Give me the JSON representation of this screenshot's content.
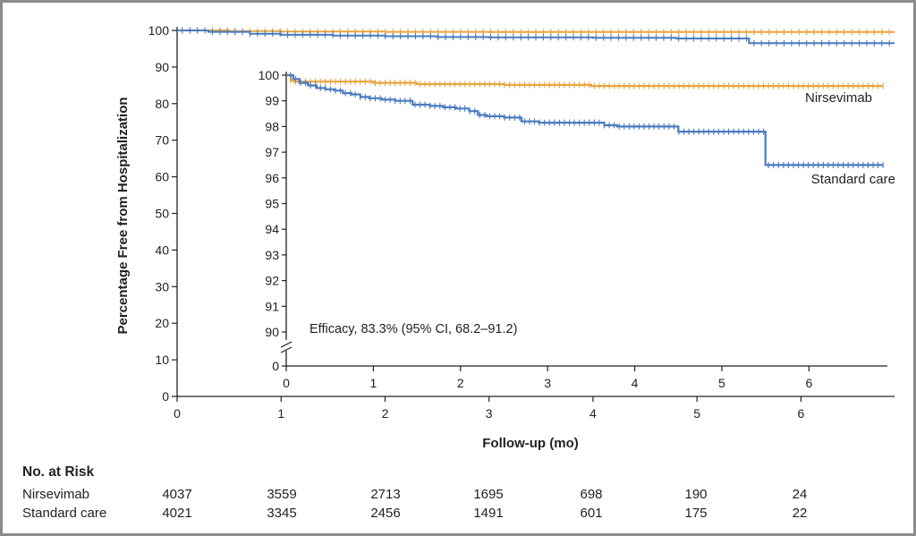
{
  "colors": {
    "nirsevimab": "#e8a640",
    "standard_care": "#4a7bbf",
    "axis": "#222222",
    "frame": "#8a8a8a"
  },
  "chart_data": [
    {
      "type": "line",
      "name": "main",
      "xlabel": "Follow-up (mo)",
      "ylabel": "Percentage Free from Hospitalization",
      "xlim": [
        0,
        6.9
      ],
      "ylim": [
        0,
        100
      ],
      "x_ticks": [
        "0",
        "1",
        "2",
        "3",
        "4",
        "5",
        "6"
      ],
      "y_ticks": [
        "0",
        "10",
        "20",
        "30",
        "40",
        "50",
        "60",
        "70",
        "80",
        "90",
        "100"
      ],
      "series": [
        {
          "key": "nirsevimab",
          "x": [
            0,
            0.5,
            1,
            2,
            3,
            4,
            5,
            6,
            6.9
          ],
          "y": [
            100,
            99.8,
            99.7,
            99.6,
            99.55,
            99.55,
            99.55,
            99.55,
            99.55
          ]
        },
        {
          "key": "standard_care",
          "x": [
            0,
            0.3,
            0.7,
            1,
            1.5,
            2,
            2.5,
            3,
            4,
            4.8,
            5.5,
            6,
            6.9
          ],
          "y": [
            100,
            99.6,
            99.1,
            98.8,
            98.6,
            98.4,
            98.2,
            98.1,
            98.0,
            97.8,
            96.5,
            96.5,
            96.5
          ]
        }
      ]
    },
    {
      "type": "line",
      "name": "inset",
      "xlim": [
        0,
        6.9
      ],
      "ylim": [
        90,
        100
      ],
      "axis_break": true,
      "x_ticks": [
        "0",
        "1",
        "2",
        "3",
        "4",
        "5",
        "6"
      ],
      "y_ticks": [
        "90",
        "91",
        "92",
        "93",
        "94",
        "95",
        "96",
        "97",
        "98",
        "99",
        "100"
      ],
      "y_zero_label": "0",
      "annotation": "Efficacy, 83.3% (95% CI, 68.2–91.2)",
      "series": [
        {
          "key": "nirsevimab",
          "label": "Nirsevimab",
          "x": [
            0,
            0.05,
            0.08,
            0.5,
            1.0,
            1.5,
            2.0,
            2.5,
            3.0,
            3.5,
            4.0,
            4.5,
            5.0,
            5.5,
            6.0,
            6.5,
            6.85
          ],
          "y": [
            100,
            99.8,
            99.75,
            99.75,
            99.7,
            99.65,
            99.65,
            99.62,
            99.62,
            99.58,
            99.58,
            99.58,
            99.58,
            99.58,
            99.58,
            99.58,
            99.58
          ]
        },
        {
          "key": "standard_care",
          "label": "Standard care",
          "x": [
            0,
            0.08,
            0.15,
            0.25,
            0.35,
            0.45,
            0.55,
            0.65,
            0.75,
            0.85,
            0.95,
            1.1,
            1.25,
            1.45,
            1.65,
            1.8,
            1.95,
            2.1,
            2.2,
            2.3,
            2.5,
            2.7,
            2.9,
            3.2,
            3.5,
            3.65,
            3.8,
            4.0,
            4.3,
            4.5,
            5.0,
            5.4,
            5.45,
            5.5,
            6.0,
            6.85
          ],
          "y": [
            100,
            99.85,
            99.7,
            99.6,
            99.5,
            99.45,
            99.4,
            99.3,
            99.25,
            99.15,
            99.1,
            99.05,
            99.0,
            98.85,
            98.8,
            98.75,
            98.7,
            98.6,
            98.45,
            98.4,
            98.35,
            98.2,
            98.15,
            98.15,
            98.15,
            98.05,
            98.0,
            98.0,
            98.0,
            97.8,
            97.8,
            97.8,
            97.8,
            96.5,
            96.5,
            96.5
          ]
        }
      ]
    }
  ],
  "risk_table": {
    "title": "No. at Risk",
    "rows": [
      {
        "label": "Nirsevimab",
        "values": [
          "4037",
          "3559",
          "2713",
          "1695",
          "698",
          "190",
          "24"
        ]
      },
      {
        "label": "Standard care",
        "values": [
          "4021",
          "3345",
          "2456",
          "1491",
          "601",
          "175",
          "22"
        ]
      }
    ]
  }
}
